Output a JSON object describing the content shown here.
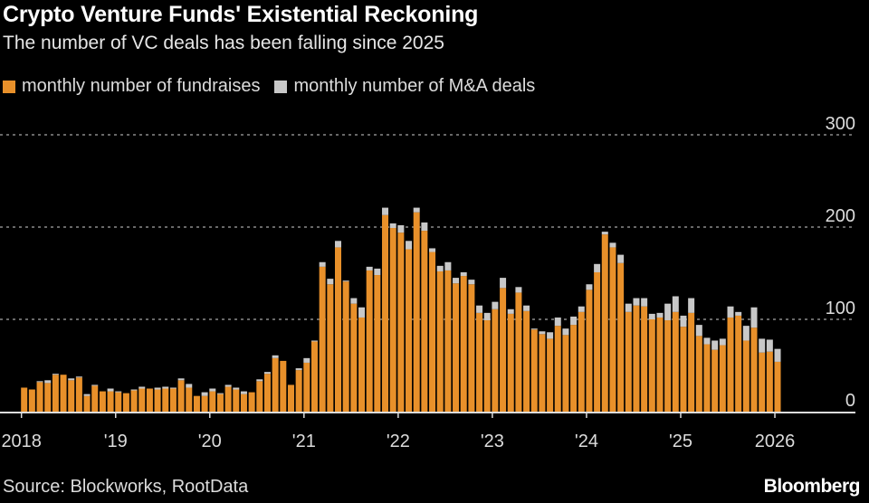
{
  "header": {
    "title": "Crypto Venture Funds' Existential Reckoning",
    "subtitle": "The number of VC deals has been falling since 2025"
  },
  "footer": {
    "source": "Source: Blockworks, RootData",
    "brand": "Bloomberg"
  },
  "colors": {
    "fundraises": "#e8902a",
    "ma": "#c8c8c8",
    "background": "#000000",
    "grid": "#888888"
  },
  "chart_data": {
    "type": "bar",
    "stacked": true,
    "title": "Crypto Venture Funds' Existential Reckoning",
    "subtitle": "The number of VC deals has been falling since 2025",
    "x_start": "2018-01",
    "x_end": "2026-01",
    "x_frequency": "monthly",
    "x_tick_labels": [
      "2018",
      "'19",
      "'20",
      "'21",
      "'22",
      "'23",
      "'24",
      "'25",
      "2026"
    ],
    "y_tick_labels": [
      "0",
      "100",
      "200",
      "300"
    ],
    "ylim": [
      0,
      300
    ],
    "grid": true,
    "legend_position": "top-left",
    "series": [
      {
        "name": "monthly number of fundraises",
        "color": "#e8902a",
        "values": [
          26,
          24,
          32,
          31,
          40,
          40,
          34,
          37,
          17,
          28,
          22,
          22,
          21,
          20,
          23,
          25,
          25,
          24,
          25,
          25,
          34,
          26,
          17,
          17,
          22,
          19,
          27,
          24,
          19,
          21,
          33,
          41,
          58,
          55,
          29,
          45,
          53,
          76,
          157,
          138,
          178,
          141,
          117,
          102,
          153,
          148,
          213,
          199,
          194,
          176,
          216,
          196,
          173,
          152,
          153,
          139,
          147,
          138,
          107,
          99,
          111,
          134,
          106,
          129,
          109,
          89,
          84,
          79,
          93,
          83,
          94,
          108,
          132,
          151,
          192,
          178,
          161,
          108,
          115,
          114,
          100,
          102,
          99,
          108,
          92,
          107,
          82,
          73,
          67,
          72,
          102,
          104,
          77,
          91,
          64,
          65,
          54
        ]
      },
      {
        "name": "monthly number of M&A deals",
        "color": "#c8c8c8",
        "values": [
          0,
          0,
          1,
          3,
          1,
          0,
          2,
          1,
          2,
          1,
          0,
          3,
          1,
          0,
          1,
          2,
          0,
          2,
          2,
          1,
          2,
          4,
          0,
          4,
          3,
          1,
          2,
          2,
          3,
          0,
          2,
          2,
          3,
          0,
          0,
          2,
          5,
          1,
          5,
          6,
          7,
          1,
          6,
          11,
          4,
          7,
          8,
          5,
          8,
          9,
          5,
          9,
          4,
          6,
          9,
          6,
          4,
          5,
          8,
          8,
          8,
          11,
          5,
          6,
          6,
          1,
          3,
          7,
          9,
          7,
          9,
          6,
          6,
          9,
          3,
          5,
          9,
          9,
          8,
          9,
          6,
          5,
          18,
          17,
          12,
          16,
          12,
          7,
          10,
          7,
          12,
          4,
          16,
          22,
          15,
          13,
          14
        ]
      }
    ]
  }
}
